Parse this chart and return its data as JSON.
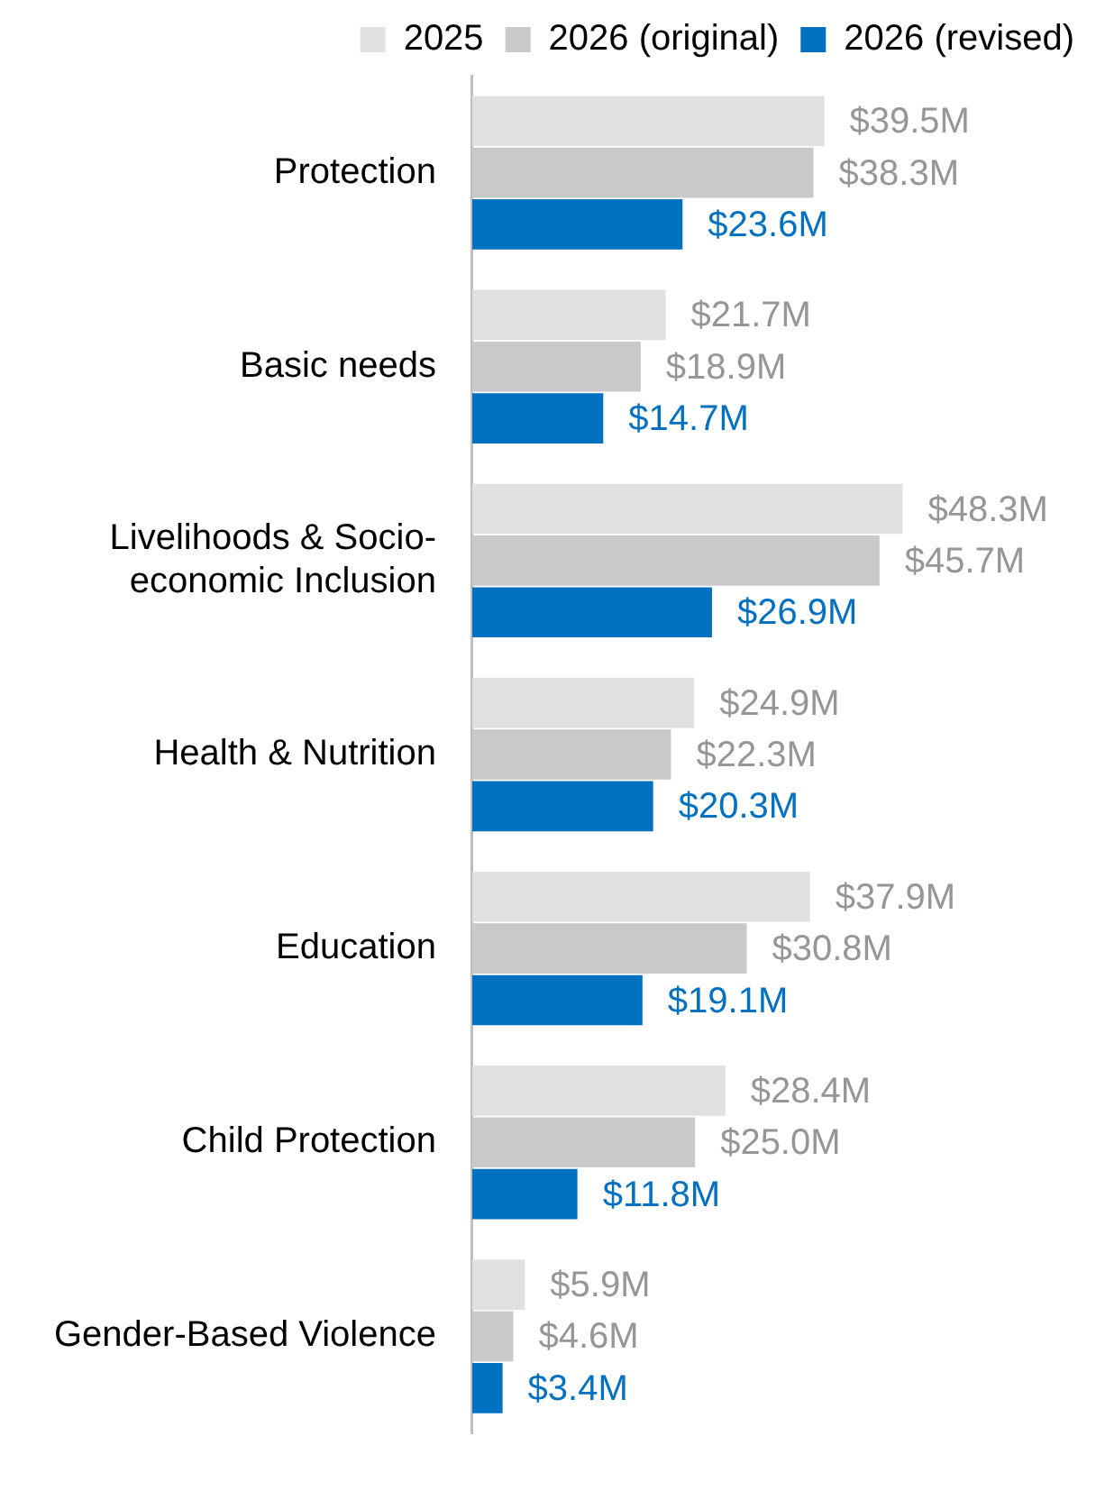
{
  "chart_data": {
    "type": "bar",
    "orientation": "horizontal",
    "legend": "top right",
    "categories": [
      "Protection",
      "Basic needs",
      "Livelihoods & Socio-economic Inclusion",
      "Health & Nutrition",
      "Education",
      "Child Protection",
      "Gender-Based Violence"
    ],
    "series": [
      {
        "name": "2025",
        "color": "#e0e0e0",
        "values": [
          39.5,
          21.7,
          48.3,
          24.9,
          37.9,
          28.4,
          5.9
        ],
        "value_labels": [
          "$39.5M",
          "$21.7M",
          "$48.3M",
          "$24.9M",
          "$37.9M",
          "$28.4M",
          "$5.9M"
        ]
      },
      {
        "name": "2026 (original)",
        "color": "#c9c9c9",
        "values": [
          38.3,
          18.9,
          45.7,
          22.3,
          30.8,
          25.0,
          4.6
        ],
        "value_labels": [
          "$38.3M",
          "$18.9M",
          "$45.7M",
          "$22.3M",
          "$30.8M",
          "$25.0M",
          "$4.6M"
        ]
      },
      {
        "name": "2026 (revised)",
        "color": "#0070c0",
        "values": [
          23.6,
          14.7,
          26.9,
          20.3,
          19.1,
          11.8,
          3.4
        ],
        "value_labels": [
          "$23.6M",
          "$14.7M",
          "$26.9M",
          "$20.3M",
          "$19.1M",
          "$11.8M",
          "$3.4M"
        ]
      }
    ]
  }
}
